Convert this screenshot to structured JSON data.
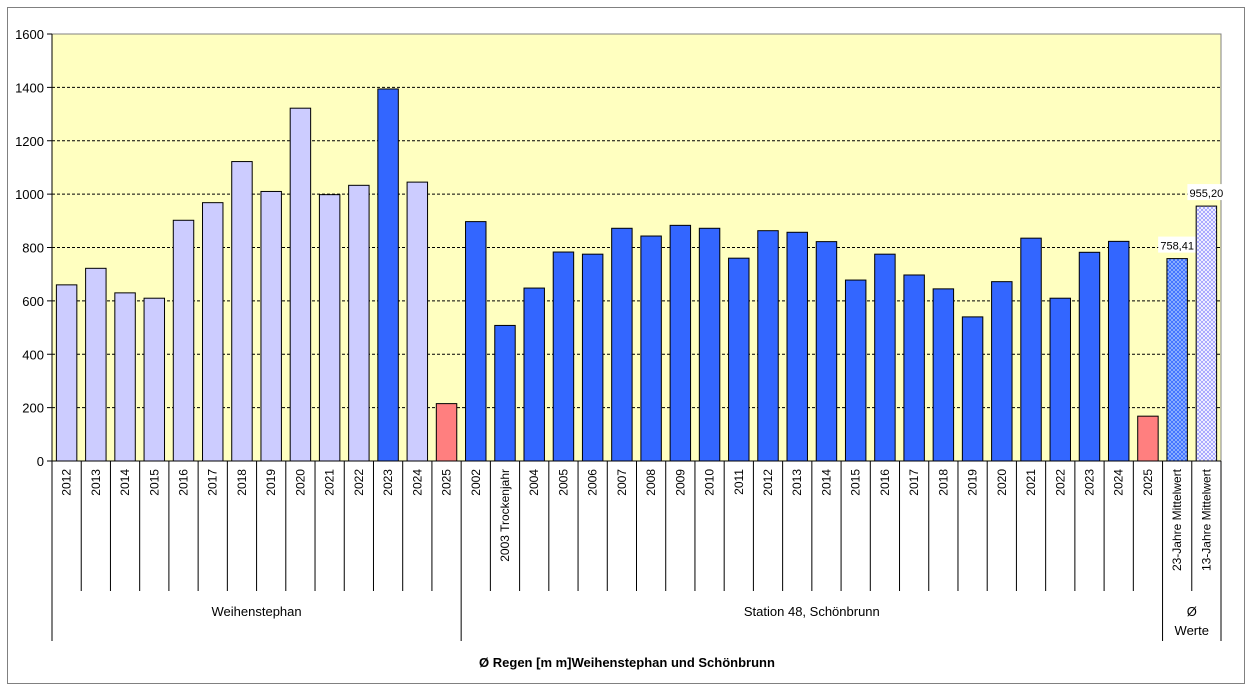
{
  "chart_data": {
    "type": "bar",
    "title": "Ø Regen [m m]Weihenstephan und Schönbrunn",
    "ylim": [
      0,
      1600
    ],
    "yticks": [
      0,
      200,
      400,
      600,
      800,
      1000,
      1200,
      1400,
      1600
    ],
    "grid": true,
    "legend": "none",
    "plot_background": "#FFFFC0",
    "colors": {
      "light": "#CCCCFF",
      "dark": "#3366FF",
      "current": "#FF7F7F",
      "avg23": "#3366FF",
      "avg13": "#CCCCFF"
    },
    "groups": [
      {
        "label": "Weihenstephan",
        "bars": [
          {
            "category": "2012",
            "value": 660,
            "style": "light"
          },
          {
            "category": "2013",
            "value": 722,
            "style": "light"
          },
          {
            "category": "2014",
            "value": 630,
            "style": "light"
          },
          {
            "category": "2015",
            "value": 610,
            "style": "light"
          },
          {
            "category": "2016",
            "value": 902,
            "style": "light"
          },
          {
            "category": "2017",
            "value": 968,
            "style": "light"
          },
          {
            "category": "2018",
            "value": 1122,
            "style": "light"
          },
          {
            "category": "2019",
            "value": 1010,
            "style": "light"
          },
          {
            "category": "2020",
            "value": 1322,
            "style": "light"
          },
          {
            "category": "2021",
            "value": 998,
            "style": "light"
          },
          {
            "category": "2022",
            "value": 1033,
            "style": "light"
          },
          {
            "category": "2023",
            "value": 1394,
            "style": "dark"
          },
          {
            "category": "2024",
            "value": 1045,
            "style": "light"
          },
          {
            "category": "2025",
            "value": 215,
            "style": "current"
          }
        ]
      },
      {
        "label": "Station 48, Schönbrunn",
        "bars": [
          {
            "category": "2002",
            "value": 897,
            "style": "dark"
          },
          {
            "category": "2003 Trockenjahr",
            "value": 508,
            "style": "dark"
          },
          {
            "category": "2004",
            "value": 648,
            "style": "dark"
          },
          {
            "category": "2005",
            "value": 783,
            "style": "dark"
          },
          {
            "category": "2006",
            "value": 775,
            "style": "dark"
          },
          {
            "category": "2007",
            "value": 872,
            "style": "dark"
          },
          {
            "category": "2008",
            "value": 843,
            "style": "dark"
          },
          {
            "category": "2009",
            "value": 883,
            "style": "dark"
          },
          {
            "category": "2010",
            "value": 872,
            "style": "dark"
          },
          {
            "category": "2011",
            "value": 760,
            "style": "dark"
          },
          {
            "category": "2012",
            "value": 863,
            "style": "dark"
          },
          {
            "category": "2013",
            "value": 857,
            "style": "dark"
          },
          {
            "category": "2014",
            "value": 822,
            "style": "dark"
          },
          {
            "category": "2015",
            "value": 678,
            "style": "dark"
          },
          {
            "category": "2016",
            "value": 775,
            "style": "dark"
          },
          {
            "category": "2017",
            "value": 697,
            "style": "dark"
          },
          {
            "category": "2018",
            "value": 645,
            "style": "dark"
          },
          {
            "category": "2019",
            "value": 540,
            "style": "dark"
          },
          {
            "category": "2020",
            "value": 672,
            "style": "dark"
          },
          {
            "category": "2021",
            "value": 835,
            "style": "dark"
          },
          {
            "category": "2022",
            "value": 610,
            "style": "dark"
          },
          {
            "category": "2023",
            "value": 782,
            "style": "dark"
          },
          {
            "category": "2024",
            "value": 823,
            "style": "dark"
          },
          {
            "category": "2025",
            "value": 168,
            "style": "current"
          }
        ]
      },
      {
        "label": "Ø Werte",
        "bars": [
          {
            "category": "23-Jahre Mittelwert",
            "value": 758.41,
            "label": "758,41",
            "style": "avg23"
          },
          {
            "category": "13-Jahre Mittelwert",
            "value": 955.2,
            "label": "955,20",
            "style": "avg13"
          }
        ]
      }
    ]
  }
}
